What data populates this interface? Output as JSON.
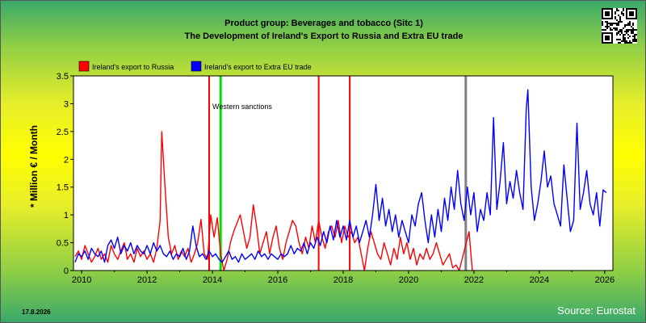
{
  "header": {
    "title_line1": "Product group: Beverages and tobacco (Sitc 1)",
    "title_line2": "The Development of Ireland's Export to  Russia and Extra EU trade"
  },
  "footer": {
    "date": "17.8.2026",
    "source": "Source: Eurostat"
  },
  "colors": {
    "russia": "#ff0000",
    "extra_eu": "#0000ff",
    "sanction_line": "#00dd00",
    "event_line": "#ff0000",
    "gray_line": "#808080",
    "plot_bg": "#ffffff"
  },
  "chart_data": {
    "type": "line",
    "title": "The Development of Ireland's Export to  Russia and Extra EU trade",
    "subtitle": "Product group: Beverages and tobacco (Sitc 1)",
    "ylabel": "* Million € / Month",
    "xlabel": "",
    "xlim": [
      2009.75,
      2026.25
    ],
    "ylim": [
      0,
      3.5
    ],
    "x_ticks": [
      "2010",
      "2012",
      "2014",
      "2016",
      "2018",
      "2020",
      "2022",
      "2024",
      "2026"
    ],
    "y_ticks": [
      "0",
      "0.5",
      "1",
      "1.5",
      "2",
      "2.5",
      "3",
      "3.5"
    ],
    "grid": false,
    "legend_position": "top-left",
    "legend": [
      "Ireland's export to Russia",
      "Ireland's export to Extra EU trade"
    ],
    "annotations": [
      {
        "text": "Western sanctions",
        "x": 2014.0,
        "y": 2.95
      }
    ],
    "vertical_lines": [
      {
        "x": 2013.9,
        "color": "red"
      },
      {
        "x": 2014.25,
        "color": "green"
      },
      {
        "x": 2017.25,
        "color": "red"
      },
      {
        "x": 2018.2,
        "color": "red"
      },
      {
        "x": 2021.75,
        "color": "gray"
      }
    ],
    "series": [
      {
        "name": "Ireland's export to Russia",
        "color": "red",
        "points": [
          [
            2009.8,
            0.25
          ],
          [
            2009.9,
            0.35
          ],
          [
            2010.0,
            0.2
          ],
          [
            2010.1,
            0.45
          ],
          [
            2010.2,
            0.3
          ],
          [
            2010.3,
            0.15
          ],
          [
            2010.4,
            0.25
          ],
          [
            2010.5,
            0.4
          ],
          [
            2010.6,
            0.2
          ],
          [
            2010.7,
            0.3
          ],
          [
            2010.8,
            0.15
          ],
          [
            2010.9,
            0.45
          ],
          [
            2011.0,
            0.3
          ],
          [
            2011.1,
            0.2
          ],
          [
            2011.2,
            0.35
          ],
          [
            2011.3,
            0.5
          ],
          [
            2011.4,
            0.2
          ],
          [
            2011.5,
            0.3
          ],
          [
            2011.6,
            0.15
          ],
          [
            2011.7,
            0.4
          ],
          [
            2011.8,
            0.25
          ],
          [
            2011.9,
            0.35
          ],
          [
            2012.0,
            0.2
          ],
          [
            2012.1,
            0.3
          ],
          [
            2012.2,
            0.15
          ],
          [
            2012.3,
            0.4
          ],
          [
            2012.4,
            0.9
          ],
          [
            2012.45,
            2.5
          ],
          [
            2012.55,
            1.5
          ],
          [
            2012.65,
            0.6
          ],
          [
            2012.75,
            0.3
          ],
          [
            2012.85,
            0.45
          ],
          [
            2012.95,
            0.2
          ],
          [
            2013.05,
            0.35
          ],
          [
            2013.15,
            0.25
          ],
          [
            2013.25,
            0.4
          ],
          [
            2013.35,
            0.15
          ],
          [
            2013.45,
            0.3
          ],
          [
            2013.55,
            0.5
          ],
          [
            2013.65,
            0.92
          ],
          [
            2013.75,
            0.3
          ],
          [
            2013.85,
            0.2
          ],
          [
            2013.95,
            1.0
          ],
          [
            2014.05,
            0.6
          ],
          [
            2014.15,
            0.95
          ],
          [
            2014.25,
            0.3
          ],
          [
            2014.35,
            0.0
          ],
          [
            2014.45,
            0.2
          ],
          [
            2014.55,
            0.5
          ],
          [
            2014.65,
            0.7
          ],
          [
            2014.75,
            0.85
          ],
          [
            2014.85,
            1.0
          ],
          [
            2014.95,
            0.7
          ],
          [
            2015.05,
            0.4
          ],
          [
            2015.15,
            0.6
          ],
          [
            2015.25,
            1.18
          ],
          [
            2015.35,
            0.8
          ],
          [
            2015.45,
            0.3
          ],
          [
            2015.55,
            0.5
          ],
          [
            2015.65,
            0.7
          ],
          [
            2015.75,
            0.3
          ],
          [
            2015.85,
            0.6
          ],
          [
            2015.95,
            0.8
          ],
          [
            2016.05,
            0.4
          ],
          [
            2016.15,
            0.2
          ],
          [
            2016.25,
            0.5
          ],
          [
            2016.35,
            0.7
          ],
          [
            2016.45,
            0.9
          ],
          [
            2016.55,
            0.8
          ],
          [
            2016.65,
            0.5
          ],
          [
            2016.75,
            0.3
          ],
          [
            2016.85,
            0.6
          ],
          [
            2016.95,
            0.4
          ],
          [
            2017.05,
            0.8
          ],
          [
            2017.15,
            0.5
          ],
          [
            2017.25,
            0.9
          ],
          [
            2017.35,
            0.6
          ],
          [
            2017.45,
            0.4
          ],
          [
            2017.55,
            0.7
          ],
          [
            2017.65,
            0.8
          ],
          [
            2017.75,
            0.6
          ],
          [
            2017.85,
            0.9
          ],
          [
            2017.95,
            0.5
          ],
          [
            2018.05,
            0.8
          ],
          [
            2018.15,
            0.6
          ],
          [
            2018.25,
            0.7
          ],
          [
            2018.35,
            0.5
          ],
          [
            2018.45,
            0.6
          ],
          [
            2018.55,
            0.3
          ],
          [
            2018.65,
            0.0
          ],
          [
            2018.75,
            0.4
          ],
          [
            2018.85,
            0.7
          ],
          [
            2018.95,
            0.5
          ],
          [
            2019.05,
            0.3
          ],
          [
            2019.15,
            0.2
          ],
          [
            2019.25,
            0.5
          ],
          [
            2019.35,
            0.3
          ],
          [
            2019.45,
            0.1
          ],
          [
            2019.55,
            0.4
          ],
          [
            2019.65,
            0.2
          ],
          [
            2019.75,
            0.6
          ],
          [
            2019.85,
            0.3
          ],
          [
            2019.95,
            0.5
          ],
          [
            2020.05,
            0.2
          ],
          [
            2020.15,
            0.4
          ],
          [
            2020.25,
            0.1
          ],
          [
            2020.35,
            0.3
          ],
          [
            2020.45,
            0.2
          ],
          [
            2020.55,
            0.4
          ],
          [
            2020.65,
            0.2
          ],
          [
            2020.75,
            0.3
          ],
          [
            2020.85,
            0.5
          ],
          [
            2020.95,
            0.3
          ],
          [
            2021.05,
            0.1
          ],
          [
            2021.15,
            0.2
          ],
          [
            2021.25,
            0.3
          ],
          [
            2021.35,
            0.05
          ],
          [
            2021.45,
            0.1
          ],
          [
            2021.55,
            0.0
          ],
          [
            2021.85,
            0.7
          ],
          [
            2021.95,
            0.0
          ]
        ]
      },
      {
        "name": "Ireland's export to Extra EU trade",
        "color": "blue",
        "points": [
          [
            2009.8,
            0.15
          ],
          [
            2009.9,
            0.3
          ],
          [
            2010.0,
            0.25
          ],
          [
            2010.1,
            0.35
          ],
          [
            2010.2,
            0.2
          ],
          [
            2010.3,
            0.4
          ],
          [
            2010.4,
            0.3
          ],
          [
            2010.5,
            0.25
          ],
          [
            2010.6,
            0.35
          ],
          [
            2010.7,
            0.15
          ],
          [
            2010.8,
            0.45
          ],
          [
            2010.9,
            0.55
          ],
          [
            2011.0,
            0.4
          ],
          [
            2011.1,
            0.6
          ],
          [
            2011.2,
            0.3
          ],
          [
            2011.3,
            0.45
          ],
          [
            2011.4,
            0.35
          ],
          [
            2011.5,
            0.5
          ],
          [
            2011.6,
            0.3
          ],
          [
            2011.7,
            0.45
          ],
          [
            2011.8,
            0.35
          ],
          [
            2011.9,
            0.3
          ],
          [
            2012.0,
            0.45
          ],
          [
            2012.1,
            0.3
          ],
          [
            2012.2,
            0.5
          ],
          [
            2012.3,
            0.35
          ],
          [
            2012.4,
            0.45
          ],
          [
            2012.5,
            0.3
          ],
          [
            2012.6,
            0.25
          ],
          [
            2012.7,
            0.35
          ],
          [
            2012.8,
            0.2
          ],
          [
            2012.9,
            0.3
          ],
          [
            2013.0,
            0.25
          ],
          [
            2013.1,
            0.4
          ],
          [
            2013.2,
            0.2
          ],
          [
            2013.3,
            0.35
          ],
          [
            2013.4,
            0.8
          ],
          [
            2013.5,
            0.45
          ],
          [
            2013.6,
            0.25
          ],
          [
            2013.7,
            0.3
          ],
          [
            2013.8,
            0.2
          ],
          [
            2013.9,
            0.35
          ],
          [
            2014.0,
            0.25
          ],
          [
            2014.1,
            0.3
          ],
          [
            2014.2,
            0.2
          ],
          [
            2014.3,
            0.15
          ],
          [
            2014.4,
            0.25
          ],
          [
            2014.5,
            0.35
          ],
          [
            2014.6,
            0.2
          ],
          [
            2014.7,
            0.25
          ],
          [
            2014.8,
            0.15
          ],
          [
            2014.9,
            0.3
          ],
          [
            2015.0,
            0.2
          ],
          [
            2015.1,
            0.25
          ],
          [
            2015.2,
            0.3
          ],
          [
            2015.3,
            0.2
          ],
          [
            2015.4,
            0.35
          ],
          [
            2015.5,
            0.25
          ],
          [
            2015.6,
            0.3
          ],
          [
            2015.7,
            0.2
          ],
          [
            2015.8,
            0.3
          ],
          [
            2015.9,
            0.25
          ],
          [
            2016.0,
            0.2
          ],
          [
            2016.1,
            0.3
          ],
          [
            2016.2,
            0.25
          ],
          [
            2016.3,
            0.3
          ],
          [
            2016.4,
            0.45
          ],
          [
            2016.5,
            0.3
          ],
          [
            2016.6,
            0.4
          ],
          [
            2016.7,
            0.35
          ],
          [
            2016.8,
            0.5
          ],
          [
            2016.9,
            0.3
          ],
          [
            2017.0,
            0.5
          ],
          [
            2017.1,
            0.4
          ],
          [
            2017.2,
            0.6
          ],
          [
            2017.3,
            0.45
          ],
          [
            2017.4,
            0.7
          ],
          [
            2017.5,
            0.5
          ],
          [
            2017.6,
            0.8
          ],
          [
            2017.7,
            0.55
          ],
          [
            2017.8,
            0.9
          ],
          [
            2017.9,
            0.6
          ],
          [
            2018.0,
            0.8
          ],
          [
            2018.1,
            0.55
          ],
          [
            2018.2,
            0.9
          ],
          [
            2018.3,
            0.6
          ],
          [
            2018.4,
            0.8
          ],
          [
            2018.5,
            0.5
          ],
          [
            2018.6,
            0.7
          ],
          [
            2018.7,
            0.9
          ],
          [
            2018.8,
            0.6
          ],
          [
            2018.9,
            1.0
          ],
          [
            2019.0,
            1.55
          ],
          [
            2019.1,
            0.9
          ],
          [
            2019.2,
            1.3
          ],
          [
            2019.3,
            0.8
          ],
          [
            2019.4,
            1.1
          ],
          [
            2019.5,
            0.7
          ],
          [
            2019.6,
            1.0
          ],
          [
            2019.7,
            0.6
          ],
          [
            2019.8,
            0.9
          ],
          [
            2019.9,
            0.7
          ],
          [
            2020.0,
            0.5
          ],
          [
            2020.1,
            1.0
          ],
          [
            2020.2,
            0.8
          ],
          [
            2020.3,
            1.2
          ],
          [
            2020.4,
            1.4
          ],
          [
            2020.5,
            0.9
          ],
          [
            2020.6,
            0.5
          ],
          [
            2020.7,
            1.0
          ],
          [
            2020.8,
            0.6
          ],
          [
            2020.9,
            1.1
          ],
          [
            2021.0,
            0.7
          ],
          [
            2021.1,
            1.3
          ],
          [
            2021.2,
            0.9
          ],
          [
            2021.3,
            1.5
          ],
          [
            2021.4,
            1.1
          ],
          [
            2021.5,
            1.8
          ],
          [
            2021.6,
            1.2
          ],
          [
            2021.7,
            0.9
          ],
          [
            2021.8,
            1.5
          ],
          [
            2021.9,
            1.0
          ],
          [
            2022.0,
            1.4
          ],
          [
            2022.1,
            0.7
          ],
          [
            2022.2,
            1.1
          ],
          [
            2022.3,
            0.9
          ],
          [
            2022.4,
            1.4
          ],
          [
            2022.5,
            1.0
          ],
          [
            2022.6,
            2.75
          ],
          [
            2022.7,
            1.1
          ],
          [
            2022.8,
            1.6
          ],
          [
            2022.9,
            2.3
          ],
          [
            2023.0,
            1.2
          ],
          [
            2023.1,
            1.6
          ],
          [
            2023.2,
            1.3
          ],
          [
            2023.3,
            1.8
          ],
          [
            2023.4,
            1.4
          ],
          [
            2023.5,
            1.1
          ],
          [
            2023.6,
            2.9
          ],
          [
            2023.65,
            3.25
          ],
          [
            2023.75,
            1.5
          ],
          [
            2023.85,
            0.9
          ],
          [
            2023.95,
            1.2
          ],
          [
            2024.05,
            1.6
          ],
          [
            2024.15,
            2.15
          ],
          [
            2024.25,
            1.5
          ],
          [
            2024.35,
            1.7
          ],
          [
            2024.45,
            1.2
          ],
          [
            2024.55,
            1.0
          ],
          [
            2024.65,
            0.8
          ],
          [
            2024.75,
            1.9
          ],
          [
            2024.85,
            1.3
          ],
          [
            2024.95,
            0.7
          ],
          [
            2025.05,
            0.9
          ],
          [
            2025.15,
            2.65
          ],
          [
            2025.25,
            1.1
          ],
          [
            2025.35,
            1.4
          ],
          [
            2025.45,
            1.8
          ],
          [
            2025.55,
            1.2
          ],
          [
            2025.65,
            1.0
          ],
          [
            2025.75,
            1.4
          ],
          [
            2025.85,
            0.8
          ],
          [
            2025.95,
            1.45
          ],
          [
            2026.05,
            1.4
          ]
        ]
      }
    ]
  }
}
